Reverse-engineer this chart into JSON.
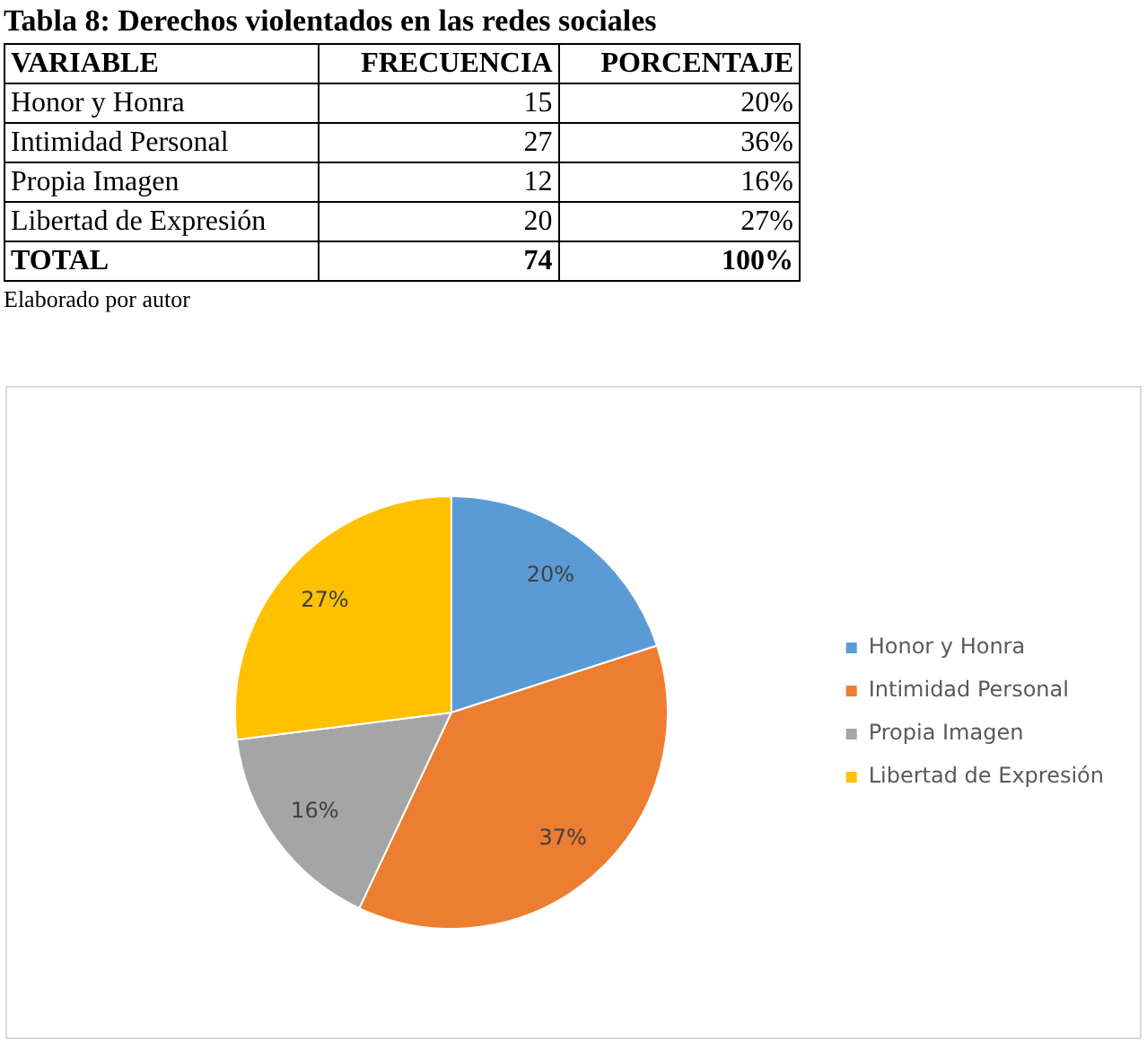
{
  "chart_data": [
    {
      "type": "other",
      "title": "Tabla 8: Derechos violentados en las redes sociales",
      "categories": [
        "VARIABLE",
        "FRECUENCIA",
        "PORCENTAJE"
      ],
      "y_categories": [
        "Honor y Honra",
        "Intimidad Personal",
        "Propia Imagen",
        "Libertad de Expresión",
        "TOTAL"
      ],
      "cell_labels": [
        [
          "15",
          "20%"
        ],
        [
          "27",
          "36%"
        ],
        [
          "12",
          "16%"
        ],
        [
          "20",
          "27%"
        ],
        [
          "74",
          "100%"
        ]
      ],
      "annotations": [
        "Elaborado por autor"
      ]
    },
    {
      "type": "pie",
      "categories": [
        "Honor y Honra",
        "Intimidad Personal",
        "Propia Imagen",
        "Libertad de Expresión"
      ],
      "values": [
        20,
        37,
        16,
        27
      ],
      "colors": [
        "#5b9bd5",
        "#ed7d31",
        "#a5a5a5",
        "#ffc000"
      ],
      "value_labels": [
        "20%",
        "37%",
        "16%",
        "27%"
      ],
      "legend": "right"
    }
  ]
}
